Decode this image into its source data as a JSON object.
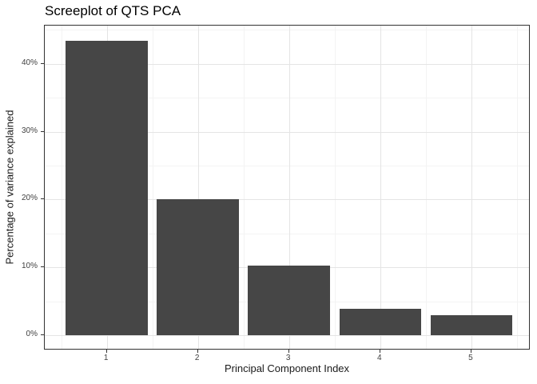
{
  "chart_data": {
    "type": "bar",
    "title": "Screeplot of QTS PCA",
    "xlabel": "Principal Component Index",
    "ylabel": "Percentage of variance explained",
    "categories": [
      "1",
      "2",
      "3",
      "4",
      "5"
    ],
    "values": [
      43.4,
      20.0,
      10.3,
      3.9,
      3.0
    ],
    "value_unit": "percent",
    "y_axis": {
      "tick_values": [
        0,
        10,
        20,
        30,
        40
      ],
      "tick_labels": [
        "0%",
        "10%",
        "20%",
        "30%",
        "40%"
      ],
      "minor_tick_values": [
        5,
        15,
        25,
        35,
        45
      ],
      "range_shown": [
        0,
        45.6
      ]
    },
    "x_axis": {
      "tick_labels": [
        "1",
        "2",
        "3",
        "4",
        "5"
      ],
      "minor_grid_positions": [
        0.5,
        1.5,
        2.5,
        3.5,
        4.5,
        5.5
      ]
    },
    "grid": "major+minor",
    "legend_position": "none",
    "bar_width_fraction": 0.9,
    "colors": {
      "bar_fill": "#464646",
      "panel_border": "#333333",
      "grid_major": "#e4e4e4",
      "grid_minor": "#f3f3f3",
      "axis_text": "#404040",
      "axis_title_text": "#1a1a1a",
      "title_text": "#000000",
      "background": "#ffffff"
    }
  }
}
